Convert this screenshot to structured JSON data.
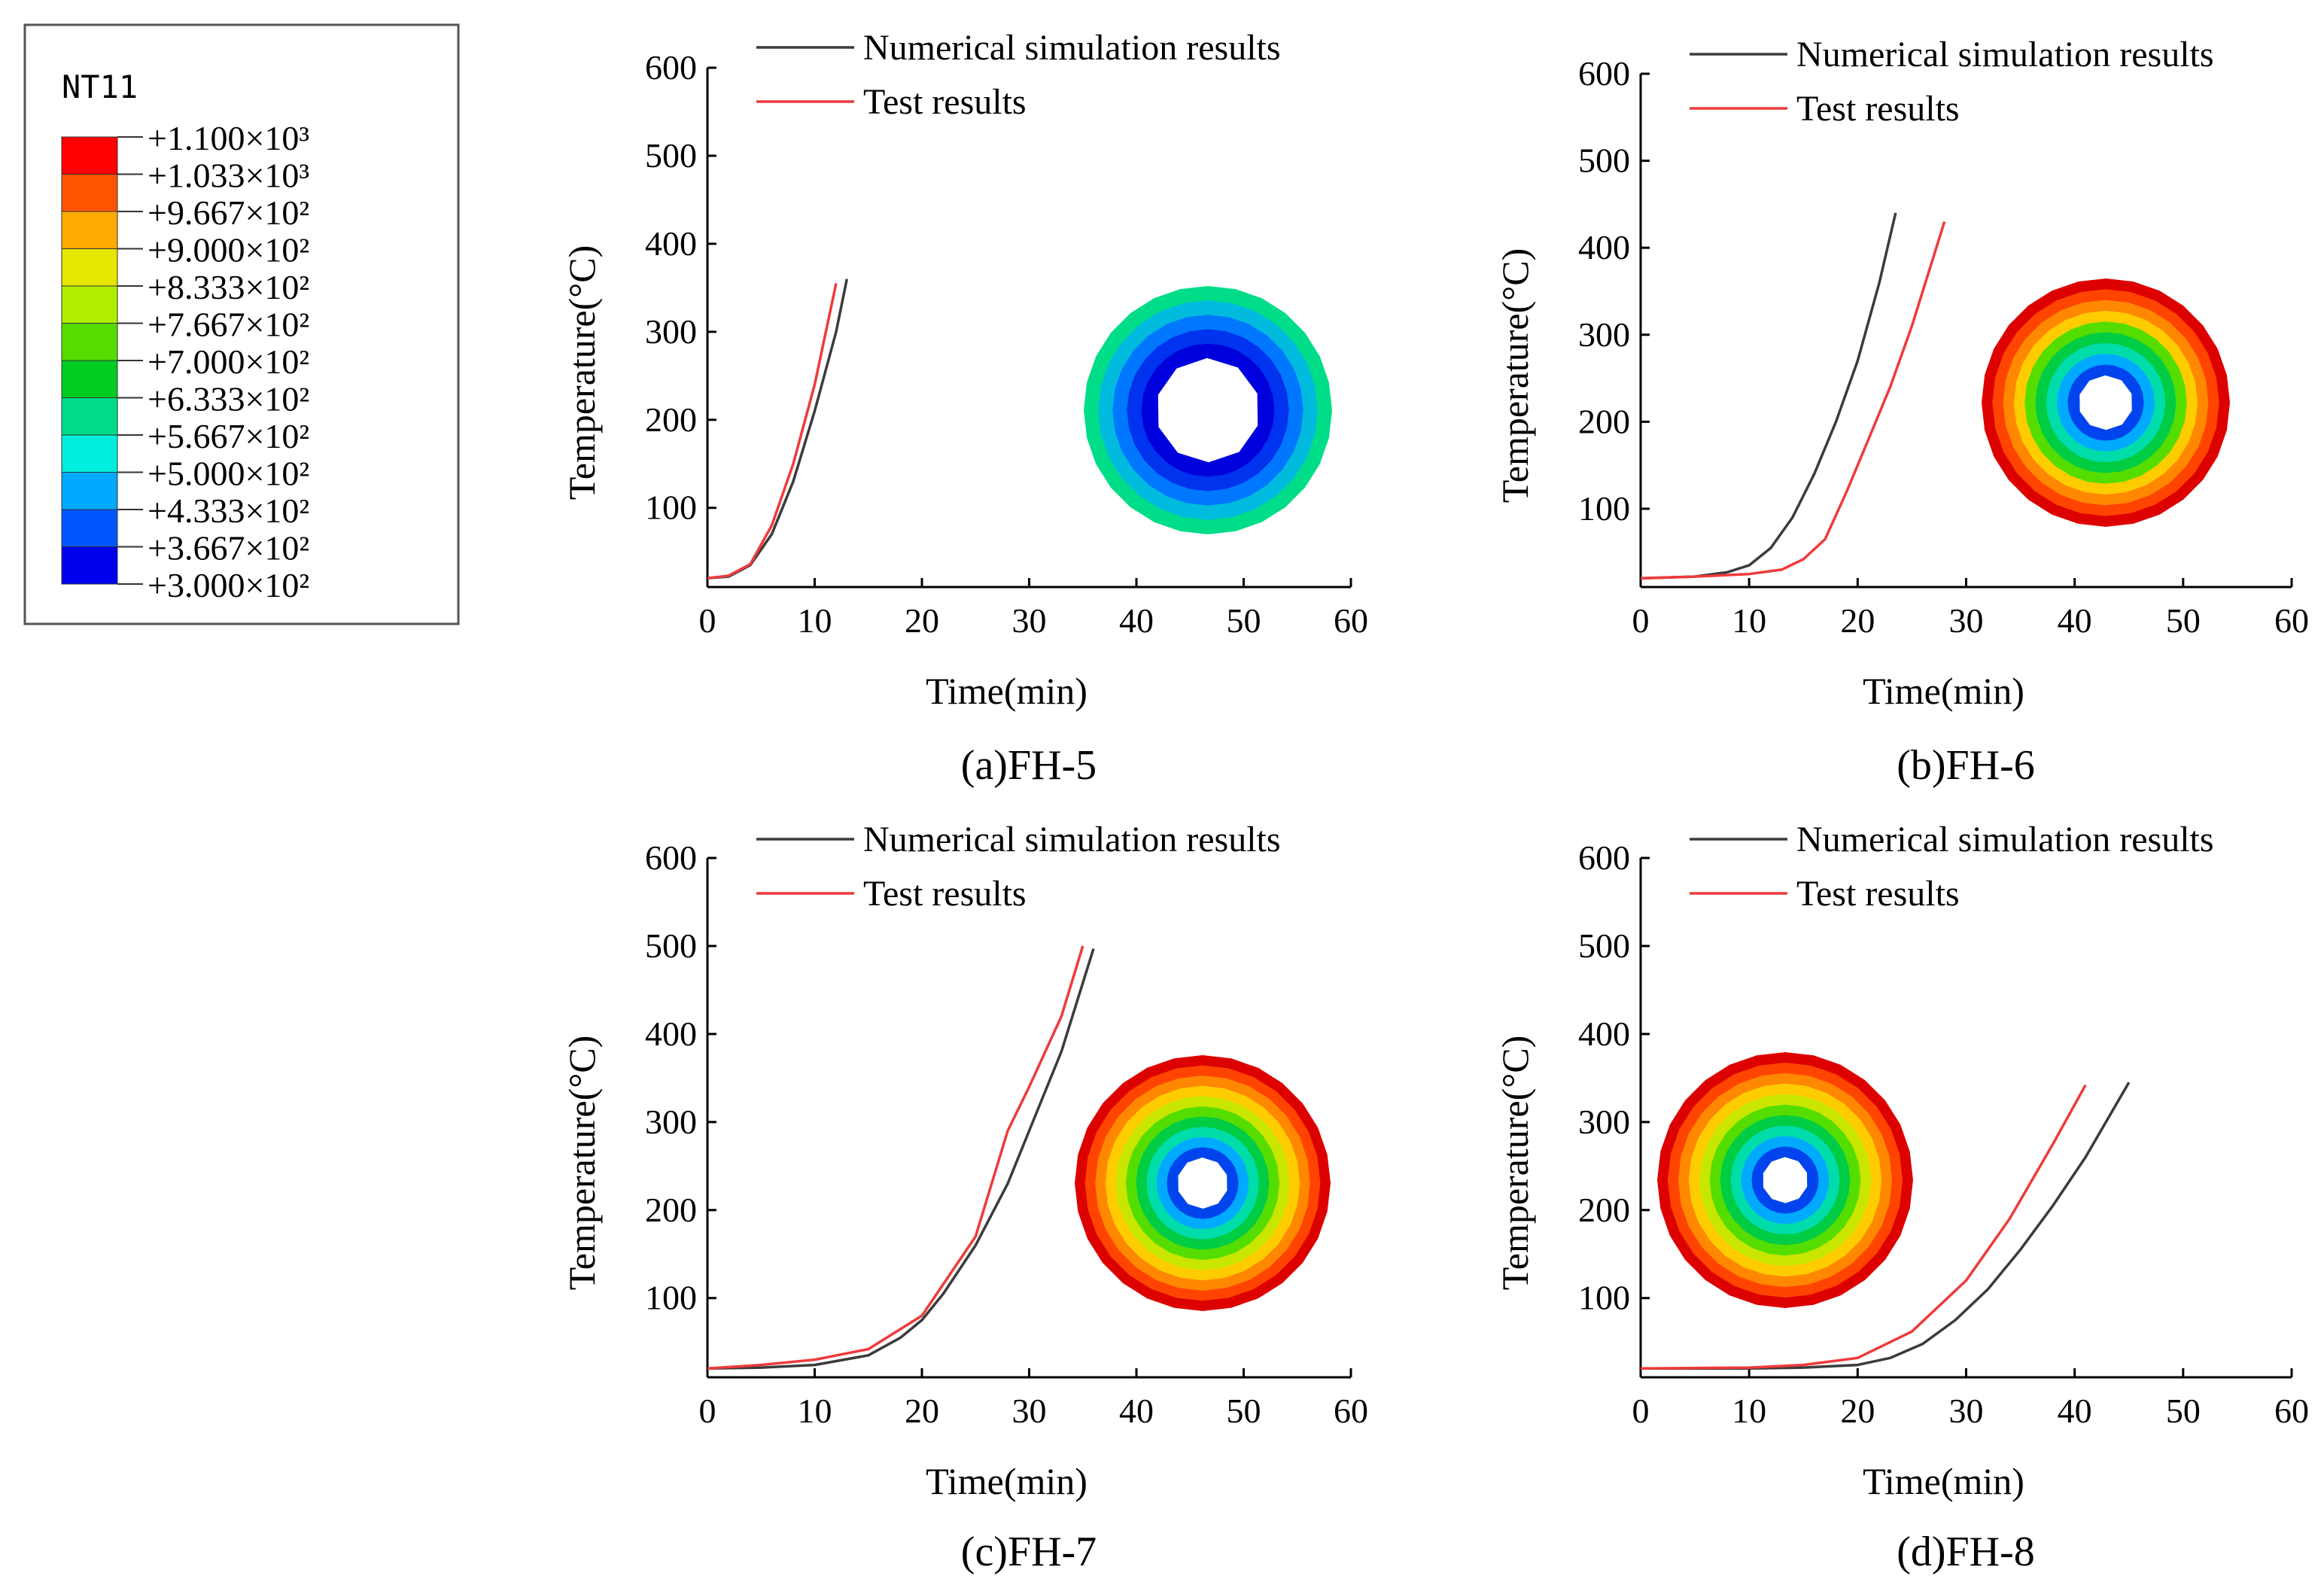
{
  "legend_box": {
    "variable": "NT11",
    "levels": [
      {
        "label": "+1.100×10³",
        "color": "#ff0000"
      },
      {
        "label": "+1.033×10³",
        "color": "#ff5500"
      },
      {
        "label": "+9.667×10²",
        "color": "#ffaa00"
      },
      {
        "label": "+9.000×10²",
        "color": "#e6e600"
      },
      {
        "label": "+8.333×10²",
        "color": "#b0ee00"
      },
      {
        "label": "+7.667×10²",
        "color": "#55dd00"
      },
      {
        "label": "+7.000×10²",
        "color": "#00cc22"
      },
      {
        "label": "+6.333×10²",
        "color": "#00dd88"
      },
      {
        "label": "+5.667×10²",
        "color": "#00eedd"
      },
      {
        "label": "+5.000×10²",
        "color": "#00aaff"
      },
      {
        "label": "+4.333×10²",
        "color": "#0055ff"
      },
      {
        "label": "+3.667×10²",
        "color": "#0000ee"
      },
      {
        "label": "+3.000×10²",
        "color": "#0000ee"
      }
    ]
  },
  "colors": {
    "numerical": "#3b3b3b",
    "test": "#ee3b3b",
    "axis": "#000000"
  },
  "chart_data": [
    {
      "type": "line",
      "caption": "(a)FH-5",
      "xlabel": "Time(min)",
      "ylabel": "Temperature(°C)",
      "xlim": [
        0,
        60
      ],
      "ylim": [
        10,
        600
      ],
      "xticks": [
        0,
        10,
        20,
        30,
        40,
        50,
        60
      ],
      "yticks": [
        100,
        200,
        300,
        400,
        500,
        600
      ],
      "legend_position": "top-center",
      "series": [
        {
          "name": "Numerical simulation results",
          "color": "#3b3b3b",
          "x": [
            0,
            2,
            4,
            6,
            8,
            10,
            12,
            13
          ],
          "y": [
            20,
            22,
            35,
            70,
            130,
            210,
            300,
            360
          ]
        },
        {
          "name": "Test results",
          "color": "#ee3b3b",
          "x": [
            0,
            2,
            4,
            6,
            8,
            10,
            12
          ],
          "y": [
            20,
            23,
            36,
            80,
            150,
            240,
            355
          ]
        }
      ],
      "inset": {
        "min_color": "#0000ee",
        "max_color": "#00dd88",
        "ring_count": 5,
        "hole_ratio": 0.42
      }
    },
    {
      "type": "line",
      "caption": "(b)FH-6",
      "xlabel": "Time(min)",
      "ylabel": "Temperature(°C)",
      "xlim": [
        0,
        60
      ],
      "ylim": [
        10,
        600
      ],
      "xticks": [
        0,
        10,
        20,
        30,
        40,
        50,
        60
      ],
      "yticks": [
        100,
        200,
        300,
        400,
        500,
        600
      ],
      "legend_position": "top-center",
      "series": [
        {
          "name": "Numerical simulation results",
          "color": "#3b3b3b",
          "x": [
            0,
            5,
            8,
            10,
            12,
            14,
            16,
            18,
            20,
            22,
            23.5
          ],
          "y": [
            20,
            22,
            27,
            35,
            55,
            90,
            140,
            200,
            270,
            360,
            440
          ]
        },
        {
          "name": "Test results",
          "color": "#ee3b3b",
          "x": [
            0,
            5,
            10,
            13,
            15,
            17,
            19,
            21,
            23,
            25,
            28
          ],
          "y": [
            20,
            22,
            25,
            30,
            42,
            65,
            120,
            180,
            240,
            310,
            430
          ]
        }
      ],
      "inset": {
        "min_color": "#0000ee",
        "max_color": "#ff3300",
        "ring_count": 9,
        "hole_ratio": 0.22
      }
    },
    {
      "type": "line",
      "caption": "(c)FH-7",
      "xlabel": "Time(min)",
      "ylabel": "Temperature(°C)",
      "xlim": [
        0,
        60
      ],
      "ylim": [
        10,
        600
      ],
      "xticks": [
        0,
        10,
        20,
        30,
        40,
        50,
        60
      ],
      "yticks": [
        100,
        200,
        300,
        400,
        500,
        600
      ],
      "legend_position": "top-center",
      "series": [
        {
          "name": "Numerical simulation results",
          "color": "#3b3b3b",
          "x": [
            0,
            5,
            10,
            15,
            18,
            20,
            22,
            25,
            28,
            30,
            33,
            36
          ],
          "y": [
            20,
            21,
            24,
            35,
            55,
            75,
            105,
            160,
            230,
            290,
            380,
            497
          ]
        },
        {
          "name": "Test results",
          "color": "#ee3b3b",
          "x": [
            0,
            5,
            10,
            15,
            20,
            25,
            28,
            30,
            33,
            35
          ],
          "y": [
            20,
            24,
            30,
            42,
            80,
            170,
            290,
            340,
            420,
            500
          ]
        }
      ],
      "inset": {
        "min_color": "#0000ee",
        "max_color": "#ee0000",
        "ring_count": 10,
        "hole_ratio": 0.2
      }
    },
    {
      "type": "line",
      "caption": "(d)FH-8",
      "xlabel": "Time(min)",
      "ylabel": "Temperature(°C)",
      "xlim": [
        0,
        60
      ],
      "ylim": [
        10,
        600
      ],
      "xticks": [
        0,
        10,
        20,
        30,
        40,
        50,
        60
      ],
      "yticks": [
        100,
        200,
        300,
        400,
        500,
        600
      ],
      "legend_position": "top-center",
      "series": [
        {
          "name": "Numerical simulation results",
          "color": "#3b3b3b",
          "x": [
            0,
            10,
            15,
            20,
            23,
            26,
            29,
            32,
            35,
            38,
            41,
            45
          ],
          "y": [
            20,
            20,
            21,
            24,
            32,
            48,
            75,
            110,
            155,
            205,
            260,
            345
          ]
        },
        {
          "name": "Test results",
          "color": "#ee3b3b",
          "x": [
            0,
            10,
            15,
            20,
            25,
            30,
            34,
            38,
            41
          ],
          "y": [
            20,
            21,
            24,
            32,
            62,
            120,
            190,
            275,
            342
          ]
        }
      ],
      "inset": {
        "min_color": "#0000ee",
        "max_color": "#ee0000",
        "ring_count": 10,
        "hole_ratio": 0.18
      }
    }
  ]
}
